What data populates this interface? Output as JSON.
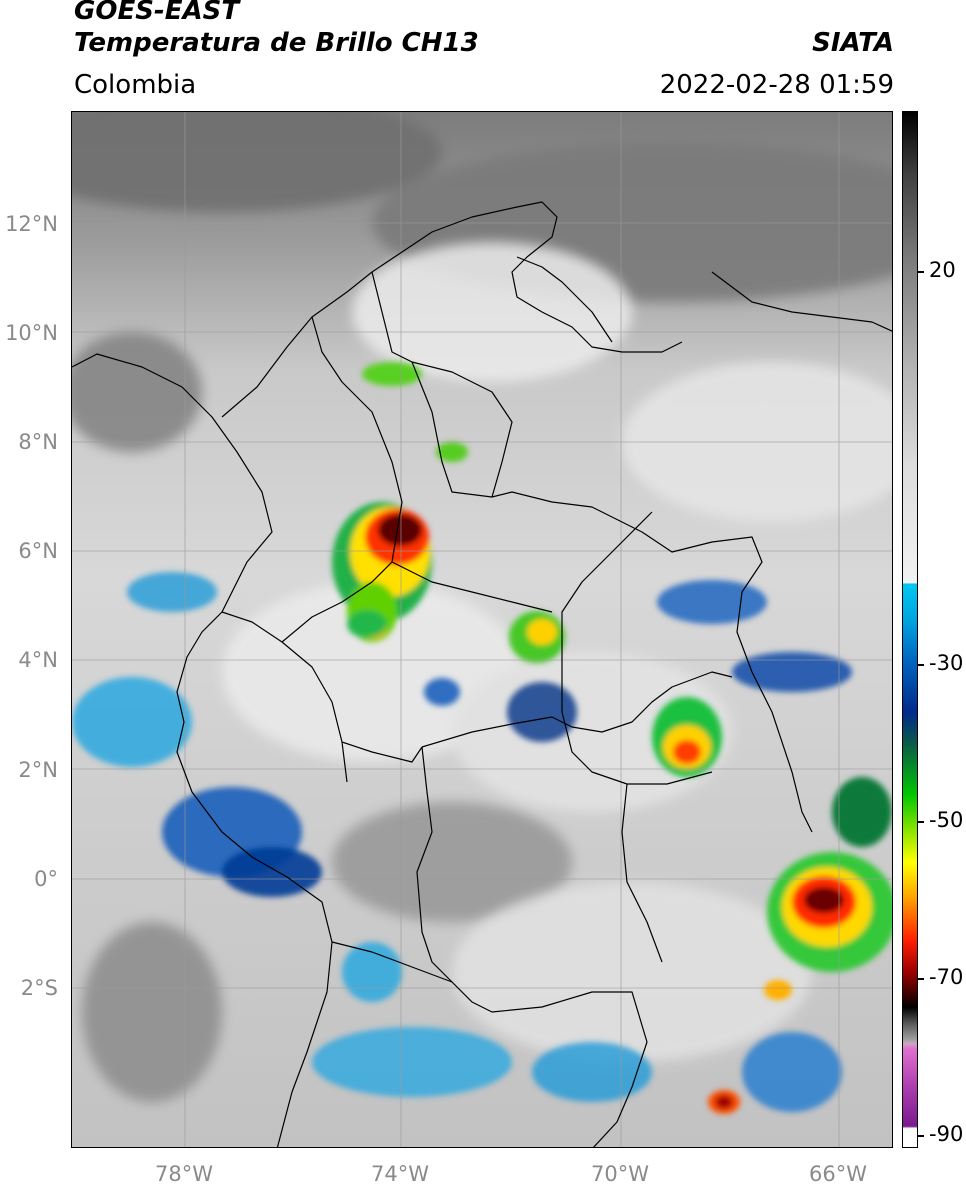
{
  "header": {
    "satellite": "GOES-EAST",
    "product": "Temperatura de Brillo CH13",
    "region": "Colombia",
    "organization": "SIATA",
    "datetime": "2022-02-28 01:59"
  },
  "axes": {
    "lat_labels": [
      "12°N",
      "10°N",
      "8°N",
      "6°N",
      "4°N",
      "2°N",
      "0°",
      "2°S"
    ],
    "lon_labels": [
      "78°W",
      "74°W",
      "70°W",
      "66°W"
    ]
  },
  "colorbar": {
    "tick_labels": [
      "20",
      "-30",
      "-50",
      "-70",
      "-90"
    ]
  },
  "colors": {
    "cold_cloud_top": "#a00000",
    "convective": "#ffff00",
    "cirrus_cold": "#00c8f0",
    "warm_surface": "#7c7c7c",
    "borders": "#000000",
    "graticule": "#9a9a9a"
  }
}
